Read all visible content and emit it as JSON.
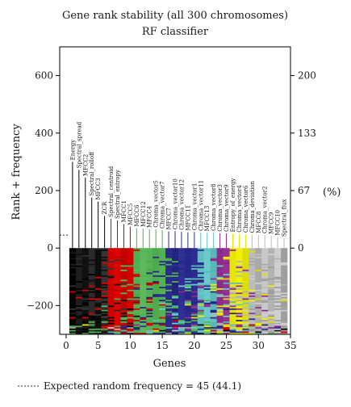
{
  "chart_data": {
    "type": "bar",
    "title": "Gene rank stability (all 300 chromosomes)",
    "subtitle": "RF classifier",
    "xlabel": "Genes",
    "ylabel": "Rank + frequency",
    "y2label": "(%)",
    "xlim": [
      -1,
      35
    ],
    "ylim": [
      -300,
      700
    ],
    "xticks": [
      0,
      5,
      10,
      15,
      20,
      25,
      30,
      35
    ],
    "yticks": [
      -200,
      0,
      200,
      400,
      600
    ],
    "y2ticks": [
      {
        "at": 0,
        "label": "0"
      },
      {
        "at": 200,
        "label": "67"
      },
      {
        "at": 400,
        "label": "133"
      },
      {
        "at": 600,
        "label": "200"
      }
    ],
    "expected_line_y": 45,
    "expected_note": "Expected random frequency = 45 (44.1)",
    "genes": [
      {
        "name": "Energy",
        "x": 1,
        "freq": 300,
        "color": "#000000"
      },
      {
        "name": "Spectral_spread",
        "x": 2,
        "freq": 272,
        "color": "#000000"
      },
      {
        "name": "MFCC2",
        "x": 3,
        "freq": 245,
        "color": "#000000"
      },
      {
        "name": "Spectral_rolloff",
        "x": 4,
        "freq": 176,
        "color": "#000000"
      },
      {
        "name": "MFCC3",
        "x": 5,
        "freq": 162,
        "color": "#000000"
      },
      {
        "name": "ZCR",
        "x": 6,
        "freq": 112,
        "color": "#000000"
      },
      {
        "name": "Spectral_centroid",
        "x": 7,
        "freq": 102,
        "color": "#cc0000"
      },
      {
        "name": "Spectral_entropy",
        "x": 8,
        "freq": 96,
        "color": "#cc0000"
      },
      {
        "name": "MFCC1",
        "x": 9,
        "freq": 84,
        "color": "#cc0000"
      },
      {
        "name": "MFCC5",
        "x": 10,
        "freq": 74,
        "color": "#cc0000"
      },
      {
        "name": "MFCC6",
        "x": 11,
        "freq": 69,
        "color": "#4caf50"
      },
      {
        "name": "MFCC12",
        "x": 12,
        "freq": 68,
        "color": "#4caf50"
      },
      {
        "name": "MFCC4",
        "x": 13,
        "freq": 65,
        "color": "#4caf50"
      },
      {
        "name": "Chroma_vector5",
        "x": 14,
        "freq": 66,
        "color": "#4caf50"
      },
      {
        "name": "Chroma_vector7",
        "x": 15,
        "freq": 62,
        "color": "#4caf50"
      },
      {
        "name": "MFCC7",
        "x": 16,
        "freq": 58,
        "color": "#2a2a8a"
      },
      {
        "name": "Chroma_vector10",
        "x": 17,
        "freq": 59,
        "color": "#2a2a8a"
      },
      {
        "name": "Chroma_vector12",
        "x": 18,
        "freq": 57,
        "color": "#2a2a8a"
      },
      {
        "name": "MFCC11",
        "x": 19,
        "freq": 55,
        "color": "#2a2a8a"
      },
      {
        "name": "Chroma_vector1",
        "x": 20,
        "freq": 56,
        "color": "#2a2a8a"
      },
      {
        "name": "Chroma_vector11",
        "x": 21,
        "freq": 54,
        "color": "#5fbfbf"
      },
      {
        "name": "MFCC13",
        "x": 22,
        "freq": 53,
        "color": "#5fbfbf"
      },
      {
        "name": "Chroma_vector8",
        "x": 23,
        "freq": 54,
        "color": "#5fbfbf"
      },
      {
        "name": "Chroma_vector3",
        "x": 24,
        "freq": 52,
        "color": "#8b2a8b"
      },
      {
        "name": "Chroma_vector9",
        "x": 25,
        "freq": 51,
        "color": "#8b2a8b"
      },
      {
        "name": "Entropy_of_energy",
        "x": 26,
        "freq": 50,
        "color": "#e6e600"
      },
      {
        "name": "Chroma_vector4",
        "x": 27,
        "freq": 49,
        "color": "#e6e600"
      },
      {
        "name": "Chroma_vector6",
        "x": 28,
        "freq": 48,
        "color": "#e6e600"
      },
      {
        "name": "Chroma_deviation",
        "x": 29,
        "freq": 47,
        "color": "#bbbbbb"
      },
      {
        "name": "MFCC8",
        "x": 30,
        "freq": 46,
        "color": "#bbbbbb"
      },
      {
        "name": "Chroma_vector2",
        "x": 31,
        "freq": 45,
        "color": "#bbbbbb"
      },
      {
        "name": "MFCC9",
        "x": 32,
        "freq": 43,
        "color": "#bbbbbb"
      },
      {
        "name": "MFCC10",
        "x": 33,
        "freq": 38,
        "color": "#bbbbbb"
      },
      {
        "name": "Spectral_flux",
        "x": 34,
        "freq": 34,
        "color": "#bbbbbb"
      }
    ],
    "rank_band_colors": [
      "#000000",
      "#1c1c1c",
      "#101010",
      "#2a2a2a",
      "#0d0d0d",
      "#333333",
      "#cc0000",
      "#e00000",
      "#c00000",
      "#d40000",
      "#4caf50",
      "#5cb85c",
      "#56b356",
      "#4cab4c",
      "#54b054",
      "#2a2a8a",
      "#23237e",
      "#2f2f96",
      "#262688",
      "#2c2c90",
      "#5fbfbf",
      "#6acaca",
      "#58b8b8",
      "#8b2a8b",
      "#962f96",
      "#e6e600",
      "#f0f000",
      "#dddd00",
      "#bbbbbb",
      "#a9a9a9",
      "#c8c8c8",
      "#b2b2b2",
      "#cfcfcf",
      "#9e9e9e"
    ]
  }
}
